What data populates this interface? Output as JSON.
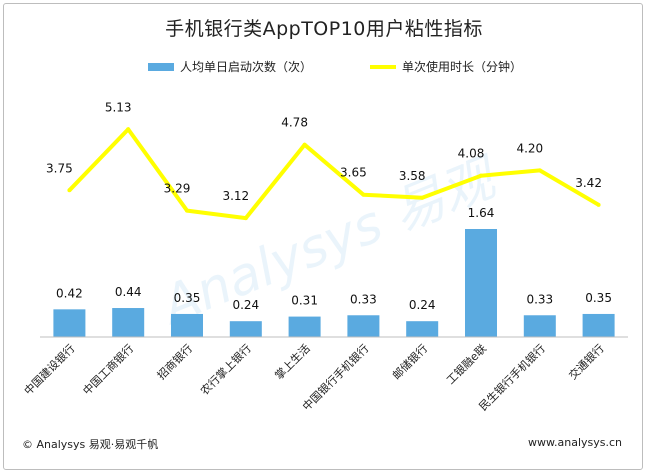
{
  "chart_data": {
    "type": "bar+line",
    "title": "手机银行类AppTOP10用户粘性指标",
    "categories": [
      "中国建设银行",
      "中国工商银行",
      "招商银行",
      "农行掌上银行",
      "掌上生活",
      "中国银行手机银行",
      "邮储银行",
      "工银融e联",
      "民生银行手机银行",
      "交通银行"
    ],
    "series": [
      {
        "name": "人均单日启动次数（次）",
        "type": "bar",
        "color": "#5aaae0",
        "values": [
          0.42,
          0.44,
          0.35,
          0.24,
          0.31,
          0.33,
          0.24,
          1.64,
          0.33,
          0.35
        ]
      },
      {
        "name": "单次使用时长（分钟）",
        "type": "line",
        "color": "#ffff00",
        "values": [
          3.75,
          5.13,
          3.29,
          3.12,
          4.78,
          3.65,
          3.58,
          4.08,
          4.2,
          3.42
        ]
      }
    ],
    "value_labels_bar": [
      "0.42",
      "0.44",
      "0.35",
      "0.24",
      "0.31",
      "0.33",
      "0.24",
      "1.64",
      "0.33",
      "0.35"
    ],
    "value_labels_line": [
      "3.75",
      "5.13",
      "3.29",
      "3.12",
      "4.78",
      "3.65",
      "3.58",
      "4.08",
      "4.20",
      "3.42"
    ],
    "legend_position": "top"
  },
  "footer": {
    "copyright": "© Analysys 易观·易观千帆",
    "website": "www.analysys.cn"
  },
  "watermark": {
    "text": "Analysys 易观"
  }
}
